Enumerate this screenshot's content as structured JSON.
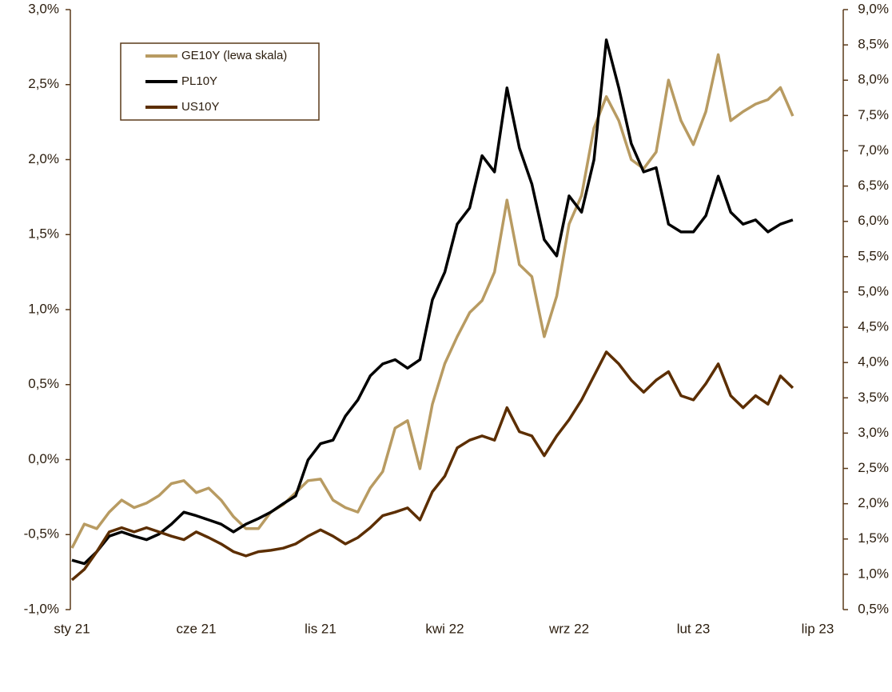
{
  "chart_data": {
    "type": "line",
    "categories": [
      "sty 21",
      null,
      null,
      null,
      null,
      null,
      null,
      null,
      null,
      null,
      "cze 21",
      null,
      null,
      null,
      null,
      null,
      null,
      null,
      null,
      null,
      "lis 21",
      null,
      null,
      null,
      null,
      null,
      null,
      null,
      null,
      null,
      "kwi 22",
      null,
      null,
      null,
      null,
      null,
      null,
      null,
      null,
      null,
      "wrz 22",
      null,
      null,
      null,
      null,
      null,
      null,
      null,
      null,
      null,
      "lut 23",
      null,
      null,
      null,
      null,
      null,
      null,
      null,
      null,
      null,
      "lip 23"
    ],
    "ylim": [
      -1.0,
      3.0
    ],
    "yticks": [
      {
        "value": -1.0,
        "label": "-1,0%"
      },
      {
        "value": -0.5,
        "label": "-0,5%"
      },
      {
        "value": 0.0,
        "label": "0,0%"
      },
      {
        "value": 0.5,
        "label": "0,5%"
      },
      {
        "value": 1.0,
        "label": "1,0%"
      },
      {
        "value": 1.5,
        "label": "1,5%"
      },
      {
        "value": 2.0,
        "label": "2,0%"
      },
      {
        "value": 2.5,
        "label": "2,5%"
      },
      {
        "value": 3.0,
        "label": "3,0%"
      }
    ],
    "y2lim": [
      0.5,
      9.0
    ],
    "y2ticks": [
      {
        "value": 0.5,
        "label": "0,5%"
      },
      {
        "value": 1.0,
        "label": "1,0%"
      },
      {
        "value": 1.5,
        "label": "1,5%"
      },
      {
        "value": 2.0,
        "label": "2,0%"
      },
      {
        "value": 2.5,
        "label": "2,5%"
      },
      {
        "value": 3.0,
        "label": "3,0%"
      },
      {
        "value": 3.5,
        "label": "3,5%"
      },
      {
        "value": 4.0,
        "label": "4,0%"
      },
      {
        "value": 4.5,
        "label": "4,5%"
      },
      {
        "value": 5.0,
        "label": "5,0%"
      },
      {
        "value": 5.5,
        "label": "5,5%"
      },
      {
        "value": 6.0,
        "label": "6,0%"
      },
      {
        "value": 6.5,
        "label": "6,5%"
      },
      {
        "value": 7.0,
        "label": "7,0%"
      },
      {
        "value": 7.5,
        "label": "7,5%"
      },
      {
        "value": 8.0,
        "label": "8,0%"
      },
      {
        "value": 8.5,
        "label": "8,5%"
      },
      {
        "value": 9.0,
        "label": "9,0%"
      }
    ],
    "grid": false,
    "legend": "upper left",
    "series": [
      {
        "name": "GE10Y (lewa skala)",
        "color": "#b89b62",
        "values": [
          -0.59,
          -0.43,
          -0.46,
          -0.35,
          -0.27,
          -0.32,
          -0.29,
          -0.24,
          -0.16,
          -0.14,
          -0.22,
          -0.19,
          -0.27,
          -0.38,
          -0.46,
          -0.46,
          -0.35,
          -0.3,
          -0.22,
          -0.14,
          -0.13,
          -0.27,
          -0.32,
          -0.35,
          -0.19,
          -0.08,
          0.21,
          0.26,
          -0.06,
          0.37,
          0.64,
          0.82,
          0.98,
          1.06,
          1.25,
          1.73,
          1.3,
          1.22,
          0.82,
          1.09,
          1.57,
          1.76,
          2.21,
          2.42,
          2.26,
          2.0,
          1.94,
          2.05,
          2.53,
          2.26,
          2.1,
          2.32,
          2.7,
          2.26,
          2.32,
          2.37,
          2.4,
          2.48,
          2.29,
          null,
          null
        ]
      },
      {
        "name": "PL10Y",
        "color": "#000000",
        "axis": "y2",
        "values": [
          1.2,
          1.15,
          1.32,
          1.54,
          1.6,
          1.54,
          1.49,
          1.57,
          1.71,
          1.88,
          1.83,
          1.77,
          1.71,
          1.6,
          1.71,
          1.79,
          1.88,
          2.0,
          2.11,
          2.62,
          2.85,
          2.9,
          3.24,
          3.47,
          3.81,
          3.98,
          4.04,
          3.92,
          4.04,
          4.89,
          5.28,
          5.96,
          6.19,
          6.93,
          6.7,
          7.89,
          7.04,
          6.53,
          5.74,
          5.51,
          6.36,
          6.13,
          6.87,
          8.57,
          7.89,
          7.1,
          6.7,
          6.76,
          5.96,
          5.85,
          5.85,
          6.08,
          6.64,
          6.13,
          5.96,
          6.02,
          5.85,
          5.96,
          6.02,
          null,
          null
        ]
      },
      {
        "name": "US10Y",
        "color": "#5c2e00",
        "axis": "y2",
        "values": [
          0.92,
          1.07,
          1.32,
          1.6,
          1.66,
          1.6,
          1.66,
          1.6,
          1.54,
          1.49,
          1.6,
          1.52,
          1.43,
          1.32,
          1.26,
          1.32,
          1.34,
          1.37,
          1.43,
          1.54,
          1.63,
          1.54,
          1.43,
          1.52,
          1.66,
          1.83,
          1.88,
          1.94,
          1.77,
          2.17,
          2.39,
          2.79,
          2.9,
          2.96,
          2.9,
          3.36,
          3.02,
          2.96,
          2.68,
          2.96,
          3.19,
          3.47,
          3.81,
          4.15,
          3.98,
          3.75,
          3.58,
          3.75,
          3.87,
          3.53,
          3.47,
          3.7,
          3.98,
          3.53,
          3.36,
          3.53,
          3.41,
          3.81,
          3.64,
          null,
          null
        ]
      }
    ]
  }
}
